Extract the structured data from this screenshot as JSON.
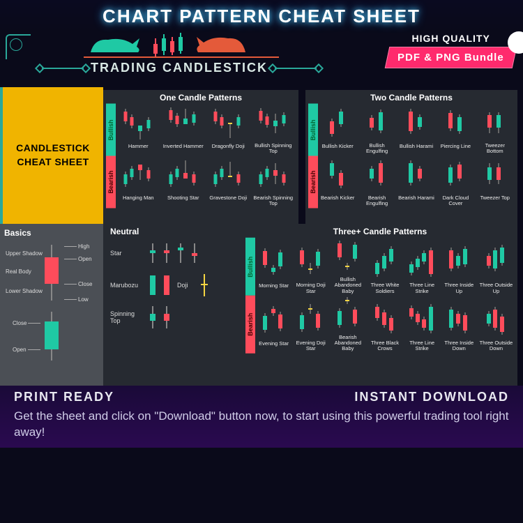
{
  "colors": {
    "bg": "#0a0a1a",
    "panel": "#262a31",
    "bull": "#1fc9a4",
    "bear": "#ff4c5b",
    "yellow": "#f0b400",
    "accent": "#2aa89a",
    "grey_panel": "#4b4f55",
    "pink": "#ff2a6d",
    "neutral_wick": "#888888",
    "hilite_yellow": "#f5d542"
  },
  "fonts": {
    "title_pt": 26,
    "section_pt": 12,
    "cell_pt": 7.5
  },
  "top_title": "CHART PATTERN CHEAT SHEET",
  "trading_banner": "TRADING CANDLESTICK",
  "quality": {
    "label": "HIGH QUALITY",
    "bundle": "PDF & PNG Bundle"
  },
  "yellow_box": {
    "line1": "CANDLESTICK",
    "line2": "CHEAT SHEET"
  },
  "side_labels": {
    "bullish": "Bullish",
    "bearish": "Bearish"
  },
  "sections": {
    "one": {
      "title": "One Candle Patterns",
      "cols": 4,
      "bullish": [
        "Hammer",
        "Inverted Hammer",
        "Dragonfly Doji",
        "Bullish Spinning Top"
      ],
      "bearish": [
        "Hanging Man",
        "Shooting Star",
        "Gravestone Doji",
        "Bearish Spinning Top"
      ]
    },
    "two": {
      "title": "Two Candle Patterns",
      "cols": 5,
      "bullish": [
        "Bullish Kicker",
        "Bullish Engulfing",
        "Bullish Harami",
        "Piercing Line",
        "Tweezer Bottom"
      ],
      "bearish": [
        "Bearish Kicker",
        "Bearish Engulfing",
        "Bearish Harami",
        "Dark Cloud Cover",
        "Tweezer Top"
      ]
    },
    "three": {
      "title": "Three+ Candle Patterns",
      "cols": 7,
      "bullish": [
        "Morning Star",
        "Morning Doji Star",
        "Bullish Abandoned Baby",
        "Three White Soldiers",
        "Three Line Strike",
        "Three Inside Up",
        "Three Outside Up"
      ],
      "bearish": [
        "Evening Star",
        "Evening Doji Star",
        "Bearish Abandoned Baby",
        "Three Black Crows",
        "Three Line Strike",
        "Three Inside Down",
        "Three Outside Down"
      ]
    }
  },
  "neutral": {
    "title": "Neutral",
    "items": [
      "Star",
      "Marubozu",
      "Doji",
      "Spinning Top"
    ]
  },
  "basics": {
    "title": "Basics",
    "labels": {
      "upper_shadow": "Upper Shadow",
      "real_body": "Real Body",
      "lower_shadow": "Lower Shadow",
      "high": "High",
      "open": "Open",
      "close": "Close",
      "low": "Low"
    }
  },
  "footer": {
    "left": "PRINT READY",
    "right": "INSTANT DOWNLOAD",
    "cta": "Get the sheet and click on \"Download\" button now, to start using this powerful trading tool right away!"
  },
  "candle_geom_note": "Candle bodies are 6px wide; wicks 2px. Heights encoded per pattern cell in the rendering script via the 'draw' map."
}
